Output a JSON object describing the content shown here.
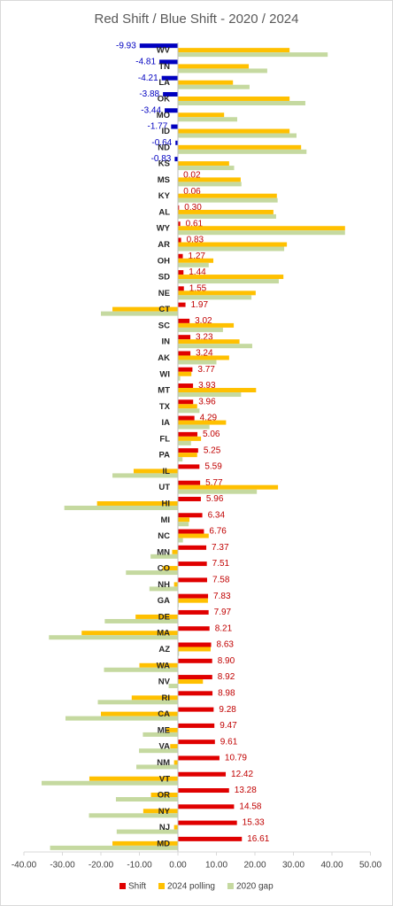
{
  "chart_data": {
    "type": "hbar",
    "title": "Red Shift / Blue Shift - 2020 / 2024",
    "categories": [
      "WV",
      "TN",
      "LA",
      "OK",
      "MO",
      "ID",
      "ND",
      "KS",
      "MS",
      "KY",
      "AL",
      "WY",
      "AR",
      "OH",
      "SD",
      "NE",
      "CT",
      "SC",
      "IN",
      "AK",
      "WI",
      "MT",
      "TX",
      "IA",
      "FL",
      "PA",
      "IL",
      "UT",
      "HI",
      "MI",
      "NC",
      "MN",
      "CO",
      "NH",
      "GA",
      "DE",
      "MA",
      "AZ",
      "WA",
      "NV",
      "RI",
      "CA",
      "ME",
      "VA",
      "NM",
      "VT",
      "OR",
      "NY",
      "NJ",
      "MD"
    ],
    "series": [
      {
        "name": "Shift",
        "color": "#e00000",
        "negative_color": "#0000c0",
        "values": [
          -9.93,
          -4.81,
          -4.21,
          -3.88,
          -3.44,
          -1.77,
          -0.64,
          -0.83,
          0.02,
          0.06,
          0.3,
          0.61,
          0.83,
          1.27,
          1.44,
          1.55,
          1.97,
          3.02,
          3.23,
          3.24,
          3.77,
          3.93,
          3.96,
          4.29,
          5.06,
          5.25,
          5.59,
          5.77,
          5.96,
          6.34,
          6.76,
          7.37,
          7.51,
          7.58,
          7.83,
          7.97,
          8.21,
          8.63,
          8.9,
          8.92,
          8.98,
          9.28,
          9.47,
          9.61,
          10.79,
          12.42,
          13.28,
          14.58,
          15.33,
          16.61
        ],
        "value_labels": [
          "-9.93",
          "-4.81",
          "-4.21",
          "-3.88",
          "-3.44",
          "-1.77",
          "-0.64",
          "-0.83",
          "0.02",
          "0.06",
          "0.30",
          "0.61",
          "0.83",
          "1.27",
          "1.44",
          "1.55",
          "1.97",
          "3.02",
          "3.23",
          "3.24",
          "3.77",
          "3.93",
          "3.96",
          "4.29",
          "5.06",
          "5.25",
          "5.59",
          "5.77",
          "5.96",
          "6.34",
          "6.76",
          "7.37",
          "7.51",
          "7.58",
          "7.83",
          "7.97",
          "8.21",
          "8.63",
          "8.90",
          "8.92",
          "8.98",
          "9.28",
          "9.47",
          "9.61",
          "10.79",
          "12.42",
          "13.28",
          "14.58",
          "15.33",
          "16.61"
        ]
      },
      {
        "name": "2024 polling",
        "color": "#ffc000",
        "values": [
          29,
          18.4,
          14.3,
          29,
          12,
          29,
          32,
          13.3,
          16.3,
          25.7,
          24.8,
          43.4,
          28.3,
          9.2,
          27.4,
          20.2,
          -17,
          14.5,
          16,
          13.3,
          3.5,
          20.3,
          5,
          12.5,
          6,
          5,
          -11.5,
          26,
          -21,
          3,
          8,
          -1.5,
          -4,
          -1,
          7.8,
          -11,
          -25,
          8.5,
          -10,
          6.5,
          -12,
          -20,
          -3,
          -2,
          -1,
          -23,
          -7,
          -9,
          -1,
          -17
        ]
      },
      {
        "name": "2020 gap",
        "color": "#c5d9a0",
        "values": [
          38.9,
          23.2,
          18.6,
          33.1,
          15.4,
          30.8,
          33.4,
          14.6,
          16.5,
          25.9,
          25.5,
          43.4,
          27.6,
          8,
          26.2,
          19.1,
          -20,
          11.7,
          19.3,
          10,
          0.6,
          16.4,
          5.6,
          8.2,
          3.4,
          1.2,
          -17,
          20.5,
          -29.5,
          2.8,
          1.3,
          -7.1,
          -13.5,
          -7.4,
          0.2,
          -19,
          -33.5,
          0.3,
          -19.2,
          -2.4,
          -20.8,
          -29.2,
          -9.1,
          -10.1,
          -10.8,
          -35.4,
          -16.1,
          -23.1,
          -15.9,
          -33.2
        ]
      }
    ],
    "xlim": [
      -40,
      50
    ],
    "xticks": [
      {
        "value": -40,
        "label": "-40.00"
      },
      {
        "value": -30,
        "label": "-30.00"
      },
      {
        "value": -20,
        "label": "-20.00"
      },
      {
        "value": -10,
        "label": "-10.00"
      },
      {
        "value": 0,
        "label": "0.00"
      },
      {
        "value": 10,
        "label": "10.00"
      },
      {
        "value": 20,
        "label": "20.00"
      },
      {
        "value": 30,
        "label": "30.00"
      },
      {
        "value": 40,
        "label": "40.00"
      },
      {
        "value": 50,
        "label": "50.00"
      }
    ],
    "legend": "bottom"
  }
}
